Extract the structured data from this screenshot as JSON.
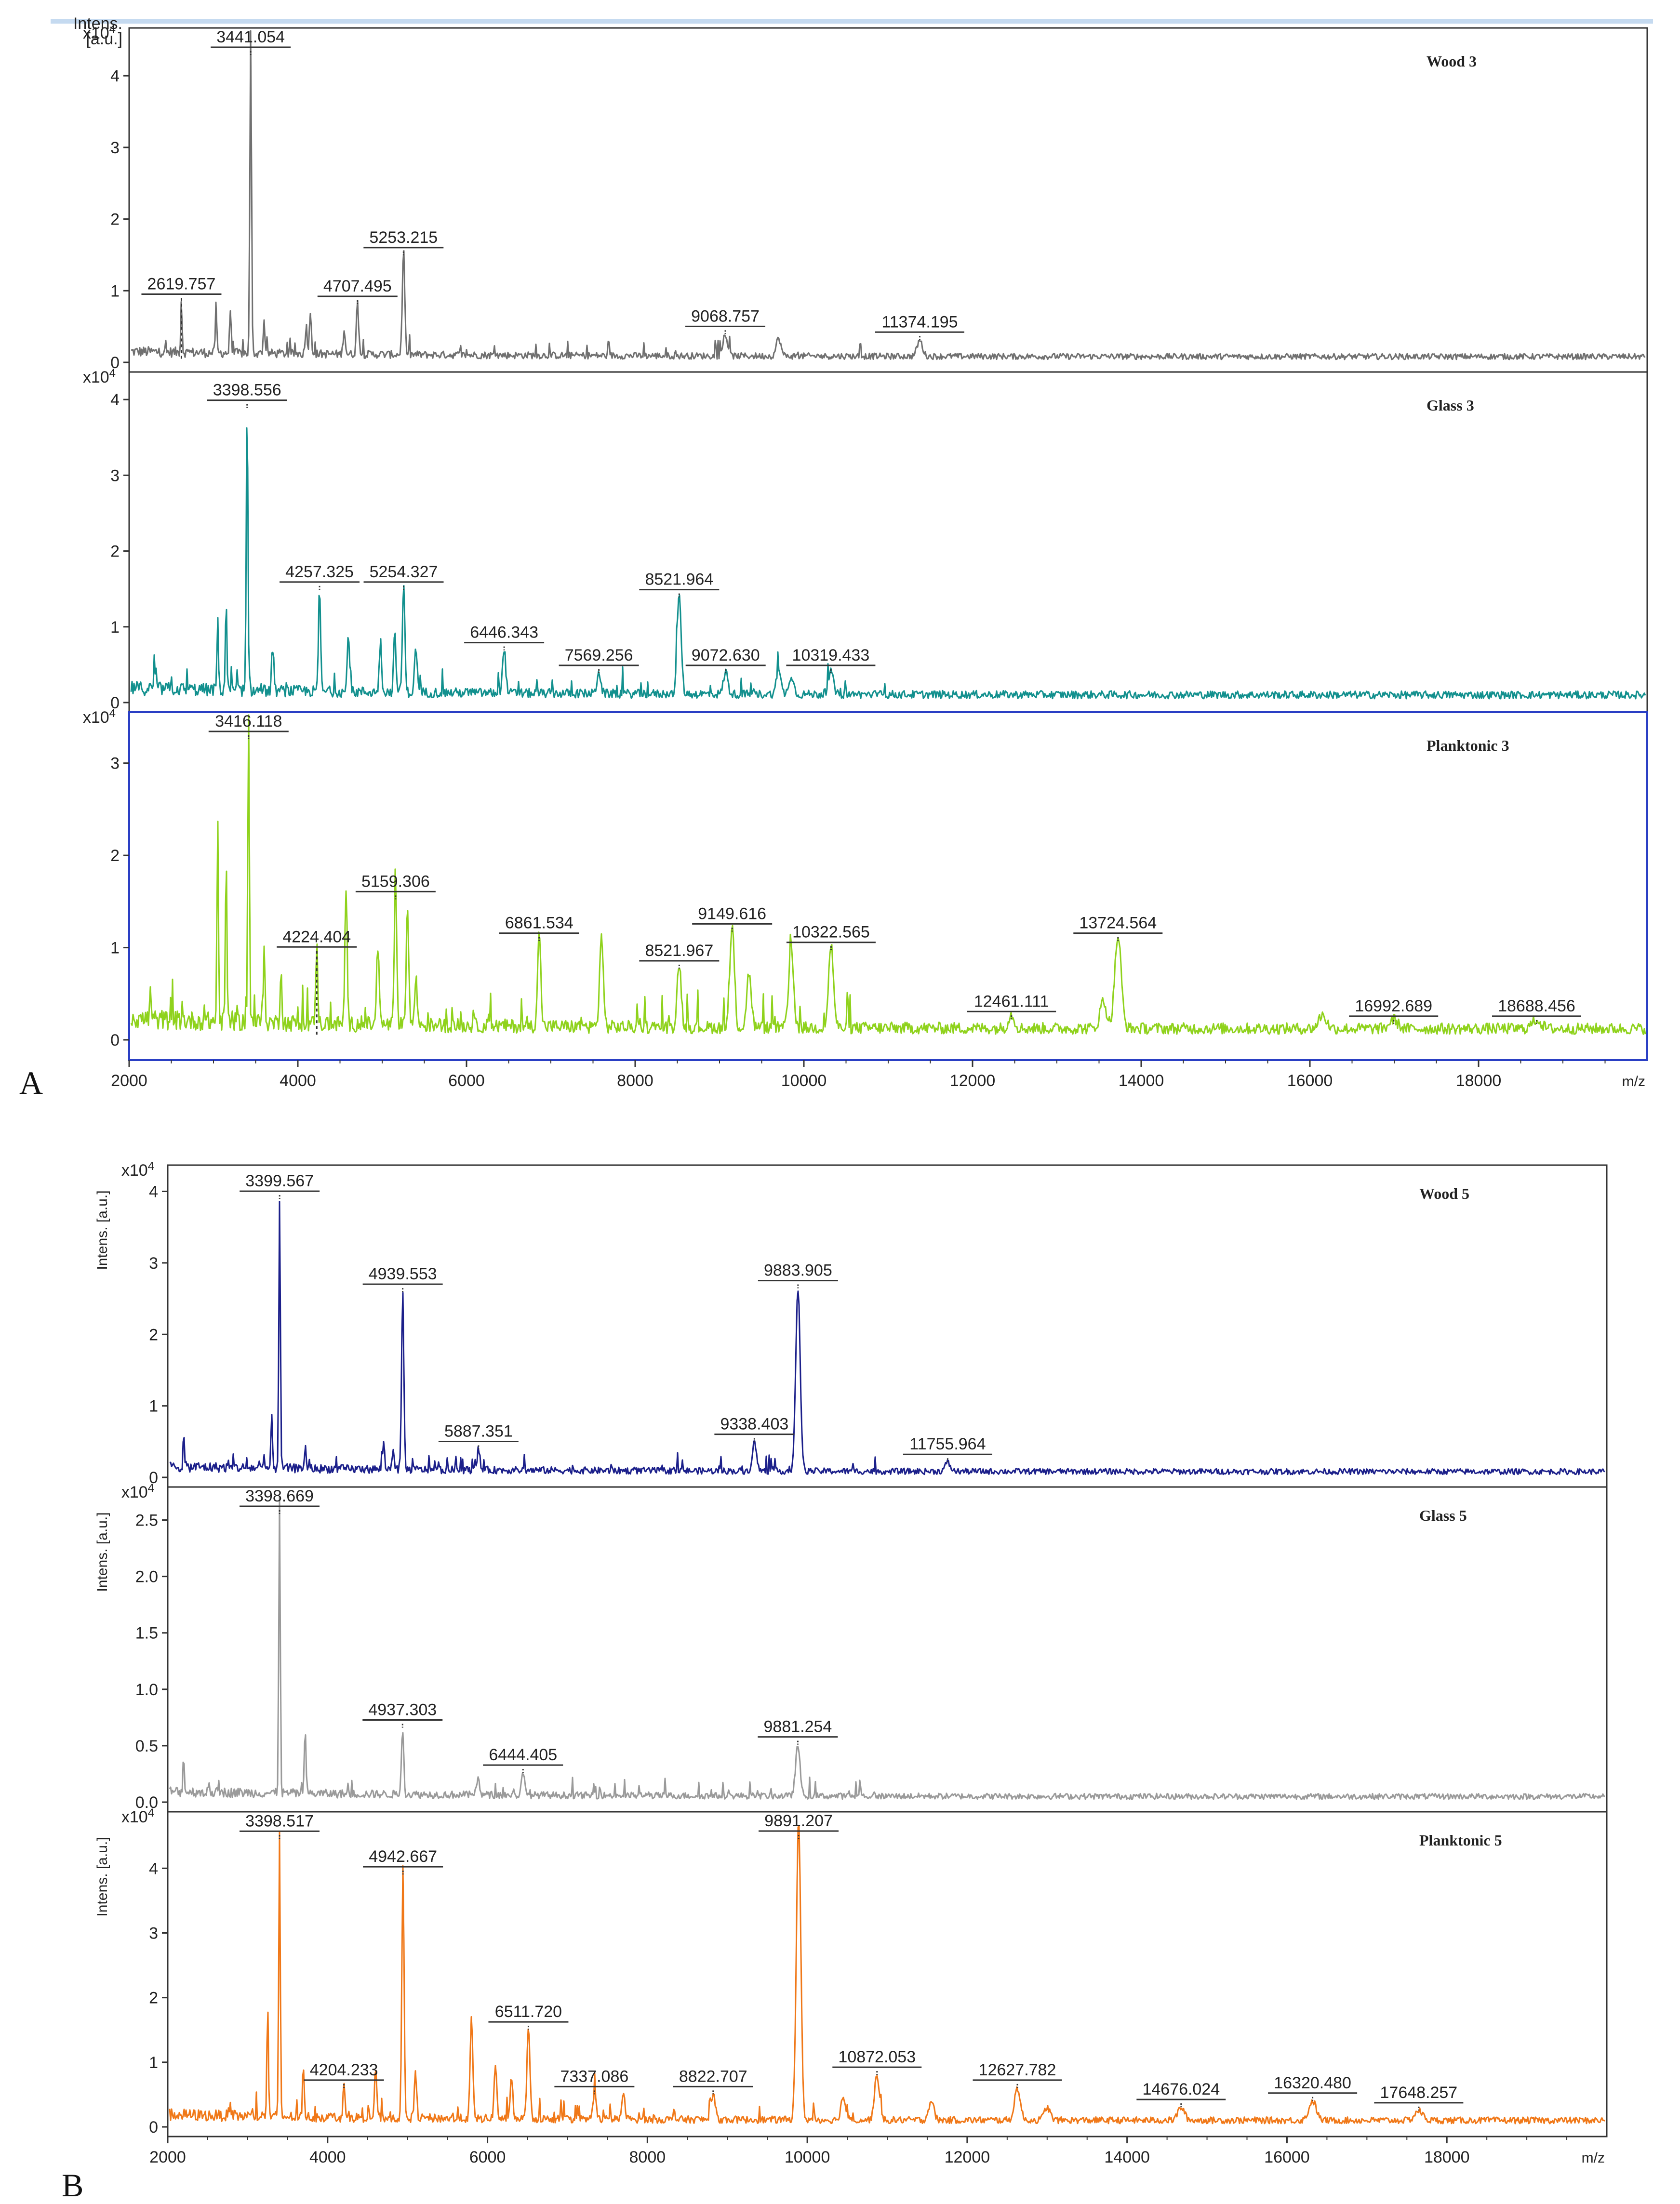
{
  "figure_labels": {
    "a": "A",
    "b": "B"
  },
  "colors": {
    "wood3": "#707070",
    "glass3": "#12908e",
    "plank3": "#8fd21c",
    "wood5": "#1b1f8a",
    "glass5": "#9a9a9a",
    "plank5": "#f07818",
    "planktonic3_border": "#2a3fc4"
  },
  "chart_data": [
    {
      "panel": "A",
      "type": "line",
      "xlabel": "m/z",
      "xlim": [
        2000,
        20000
      ],
      "xticks": [
        2000,
        4000,
        6000,
        8000,
        10000,
        12000,
        14000,
        16000,
        18000
      ],
      "subplots": [
        {
          "title": "Wood 3",
          "ylabel": "Intens. [a.u.]",
          "y_exponent": "x10",
          "y_exponent_power": "4",
          "ylim": [
            0,
            4.6
          ],
          "yticks": [
            0,
            1,
            2,
            3,
            4
          ],
          "color": "#707070",
          "baseline": 0.08,
          "peaks": [
            {
              "mz": 2619.757,
              "height": 0.75,
              "label": "2619.757",
              "dashed": true
            },
            {
              "mz": 3441.054,
              "height": 4.5,
              "label": "3441.054"
            },
            {
              "mz": 4707.495,
              "height": 0.72,
              "label": "4707.495"
            },
            {
              "mz": 5253.215,
              "height": 1.4,
              "label": "5253.215"
            },
            {
              "mz": 9068.757,
              "height": 0.3,
              "label": "9068.757"
            },
            {
              "mz": 11374.195,
              "height": 0.22,
              "label": "11374.195"
            }
          ],
          "minor_peaks": [
            [
              3030,
              0.65
            ],
            [
              3200,
              0.6
            ],
            [
              3600,
              0.45
            ],
            [
              4100,
              0.4
            ],
            [
              4150,
              0.6
            ],
            [
              4550,
              0.35
            ],
            [
              9700,
              0.25
            ]
          ]
        },
        {
          "title": "Glass 3",
          "ylim": [
            0,
            4.3
          ],
          "yticks": [
            0,
            1,
            2,
            3,
            4
          ],
          "y_exponent": "x10",
          "y_exponent_power": "4",
          "color": "#12908e",
          "baseline": 0.1,
          "peaks": [
            {
              "mz": 3398.556,
              "height": 3.8,
              "label": "3398.556"
            },
            {
              "mz": 4257.325,
              "height": 1.4,
              "label": "4257.325"
            },
            {
              "mz": 5254.327,
              "height": 1.4,
              "label": "5254.327"
            },
            {
              "mz": 6446.343,
              "height": 0.6,
              "label": "6446.343"
            },
            {
              "mz": 7569.256,
              "height": 0.3,
              "label": "7569.256"
            },
            {
              "mz": 8521.964,
              "height": 1.3,
              "label": "8521.964"
            },
            {
              "mz": 9072.63,
              "height": 0.3,
              "label": "9072.630"
            },
            {
              "mz": 10319.433,
              "height": 0.3,
              "label": "10319.433"
            }
          ],
          "minor_peaks": [
            [
              2300,
              0.4
            ],
            [
              3050,
              0.95
            ],
            [
              3150,
              1.2
            ],
            [
              3700,
              0.5
            ],
            [
              4600,
              0.8
            ],
            [
              4980,
              0.65
            ],
            [
              5150,
              0.75
            ],
            [
              5400,
              0.6
            ],
            [
              9700,
              0.3
            ],
            [
              9850,
              0.25
            ]
          ]
        },
        {
          "title": "Planktonic 3",
          "ylim": [
            0,
            3.5
          ],
          "yticks": [
            0,
            1,
            2,
            3
          ],
          "y_exponent": "x10",
          "y_exponent_power": "4",
          "color": "#8fd21c",
          "baseline": 0.12,
          "peaks": [
            {
              "mz": 3416.118,
              "height": 3.4,
              "label": "3416.118"
            },
            {
              "mz": 4224.404,
              "height": 0.85,
              "label": "4224.404",
              "dashed": true
            },
            {
              "mz": 5159.306,
              "height": 1.45,
              "label": "5159.306"
            },
            {
              "mz": 6861.534,
              "height": 1.0,
              "label": "6861.534"
            },
            {
              "mz": 8521.967,
              "height": 0.7,
              "label": "8521.967"
            },
            {
              "mz": 9149.616,
              "height": 1.1,
              "label": "9149.616"
            },
            {
              "mz": 10322.565,
              "height": 0.9,
              "label": "10322.565"
            },
            {
              "mz": 12461.111,
              "height": 0.15,
              "label": "12461.111"
            },
            {
              "mz": 13724.564,
              "height": 1.0,
              "label": "13724.564"
            },
            {
              "mz": 16992.689,
              "height": 0.1,
              "label": "16992.689"
            },
            {
              "mz": 18688.456,
              "height": 0.1,
              "label": "18688.456"
            }
          ],
          "minor_peaks": [
            [
              2250,
              0.35
            ],
            [
              3050,
              2.2
            ],
            [
              3150,
              1.8
            ],
            [
              3600,
              0.7
            ],
            [
              3800,
              0.6
            ],
            [
              4570,
              1.4
            ],
            [
              4950,
              0.85
            ],
            [
              5300,
              1.3
            ],
            [
              5400,
              0.5
            ],
            [
              7600,
              1.0
            ],
            [
              9850,
              0.9
            ],
            [
              9350,
              0.6
            ],
            [
              13550,
              0.3
            ],
            [
              16150,
              0.15
            ]
          ]
        }
      ]
    },
    {
      "panel": "B",
      "type": "line",
      "xlabel": "m/z",
      "xlim": [
        2000,
        20000
      ],
      "xticks": [
        2000,
        4000,
        6000,
        8000,
        10000,
        12000,
        14000,
        16000,
        18000
      ],
      "subplots": [
        {
          "title": "Wood 5",
          "ylabel": "Intens. [a.u.]",
          "y_exponent": "x10",
          "y_exponent_power": "4",
          "ylim": [
            0,
            4.3
          ],
          "yticks": [
            0,
            1,
            2,
            3,
            4
          ],
          "color": "#1b1f8a",
          "baseline": 0.08,
          "peaks": [
            {
              "mz": 3399.567,
              "height": 3.8,
              "label": "3399.567"
            },
            {
              "mz": 4939.553,
              "height": 2.5,
              "label": "4939.553"
            },
            {
              "mz": 5887.351,
              "height": 0.3,
              "label": "5887.351"
            },
            {
              "mz": 9338.403,
              "height": 0.4,
              "label": "9338.403"
            },
            {
              "mz": 9883.905,
              "height": 2.55,
              "label": "9883.905"
            },
            {
              "mz": 11755.964,
              "height": 0.12,
              "label": "11755.964"
            }
          ],
          "minor_peaks": [
            [
              2200,
              0.45
            ],
            [
              3300,
              0.7
            ],
            [
              3720,
              0.3
            ],
            [
              4700,
              0.35
            ],
            [
              4820,
              0.3
            ]
          ]
        },
        {
          "title": "Glass 5",
          "ylabel": "Intens. [a.u.]",
          "y_exponent": "x10",
          "y_exponent_power": "4",
          "ylim": [
            0,
            2.75
          ],
          "yticks": [
            0.0,
            0.5,
            1.0,
            1.5,
            2.0,
            2.5
          ],
          "color": "#9a9a9a",
          "baseline": 0.05,
          "peaks": [
            {
              "mz": 3398.669,
              "height": 2.6,
              "label": "3398.669"
            },
            {
              "mz": 4937.303,
              "height": 0.6,
              "label": "4937.303"
            },
            {
              "mz": 6444.405,
              "height": 0.2,
              "label": "6444.405"
            },
            {
              "mz": 9881.254,
              "height": 0.45,
              "label": "9881.254"
            }
          ],
          "minor_peaks": [
            [
              2200,
              0.35
            ],
            [
              3720,
              0.6
            ],
            [
              5880,
              0.15
            ]
          ]
        },
        {
          "title": "Planktonic 5",
          "ylabel": "Intens. [a.u.]",
          "y_exponent": "x10",
          "y_exponent_power": "4",
          "ylim": [
            0,
            4.8
          ],
          "yticks": [
            0,
            1,
            2,
            3,
            4
          ],
          "color": "#f07818",
          "baseline": 0.1,
          "peaks": [
            {
              "mz": 3398.517,
              "height": 4.35,
              "label": "3398.517"
            },
            {
              "mz": 4204.233,
              "height": 0.5,
              "label": "4204.233"
            },
            {
              "mz": 4942.667,
              "height": 3.8,
              "label": "4942.667"
            },
            {
              "mz": 6511.72,
              "height": 1.4,
              "label": "6511.720"
            },
            {
              "mz": 7337.086,
              "height": 0.4,
              "label": "7337.086"
            },
            {
              "mz": 8822.707,
              "height": 0.4,
              "label": "8822.707"
            },
            {
              "mz": 9891.207,
              "height": 4.6,
              "label": "9891.207"
            },
            {
              "mz": 10872.053,
              "height": 0.7,
              "label": "10872.053"
            },
            {
              "mz": 12627.782,
              "height": 0.5,
              "label": "12627.782"
            },
            {
              "mz": 14676.024,
              "height": 0.2,
              "label": "14676.024"
            },
            {
              "mz": 16320.48,
              "height": 0.3,
              "label": "16320.480"
            },
            {
              "mz": 17648.257,
              "height": 0.15,
              "label": "17648.257"
            }
          ],
          "minor_peaks": [
            [
              3250,
              1.8
            ],
            [
              3700,
              0.7
            ],
            [
              4600,
              0.8
            ],
            [
              5100,
              0.7
            ],
            [
              5800,
              1.55
            ],
            [
              6100,
              0.8
            ],
            [
              6300,
              0.6
            ],
            [
              7700,
              0.35
            ],
            [
              10450,
              0.35
            ],
            [
              11550,
              0.3
            ],
            [
              13000,
              0.2
            ]
          ]
        }
      ]
    }
  ]
}
